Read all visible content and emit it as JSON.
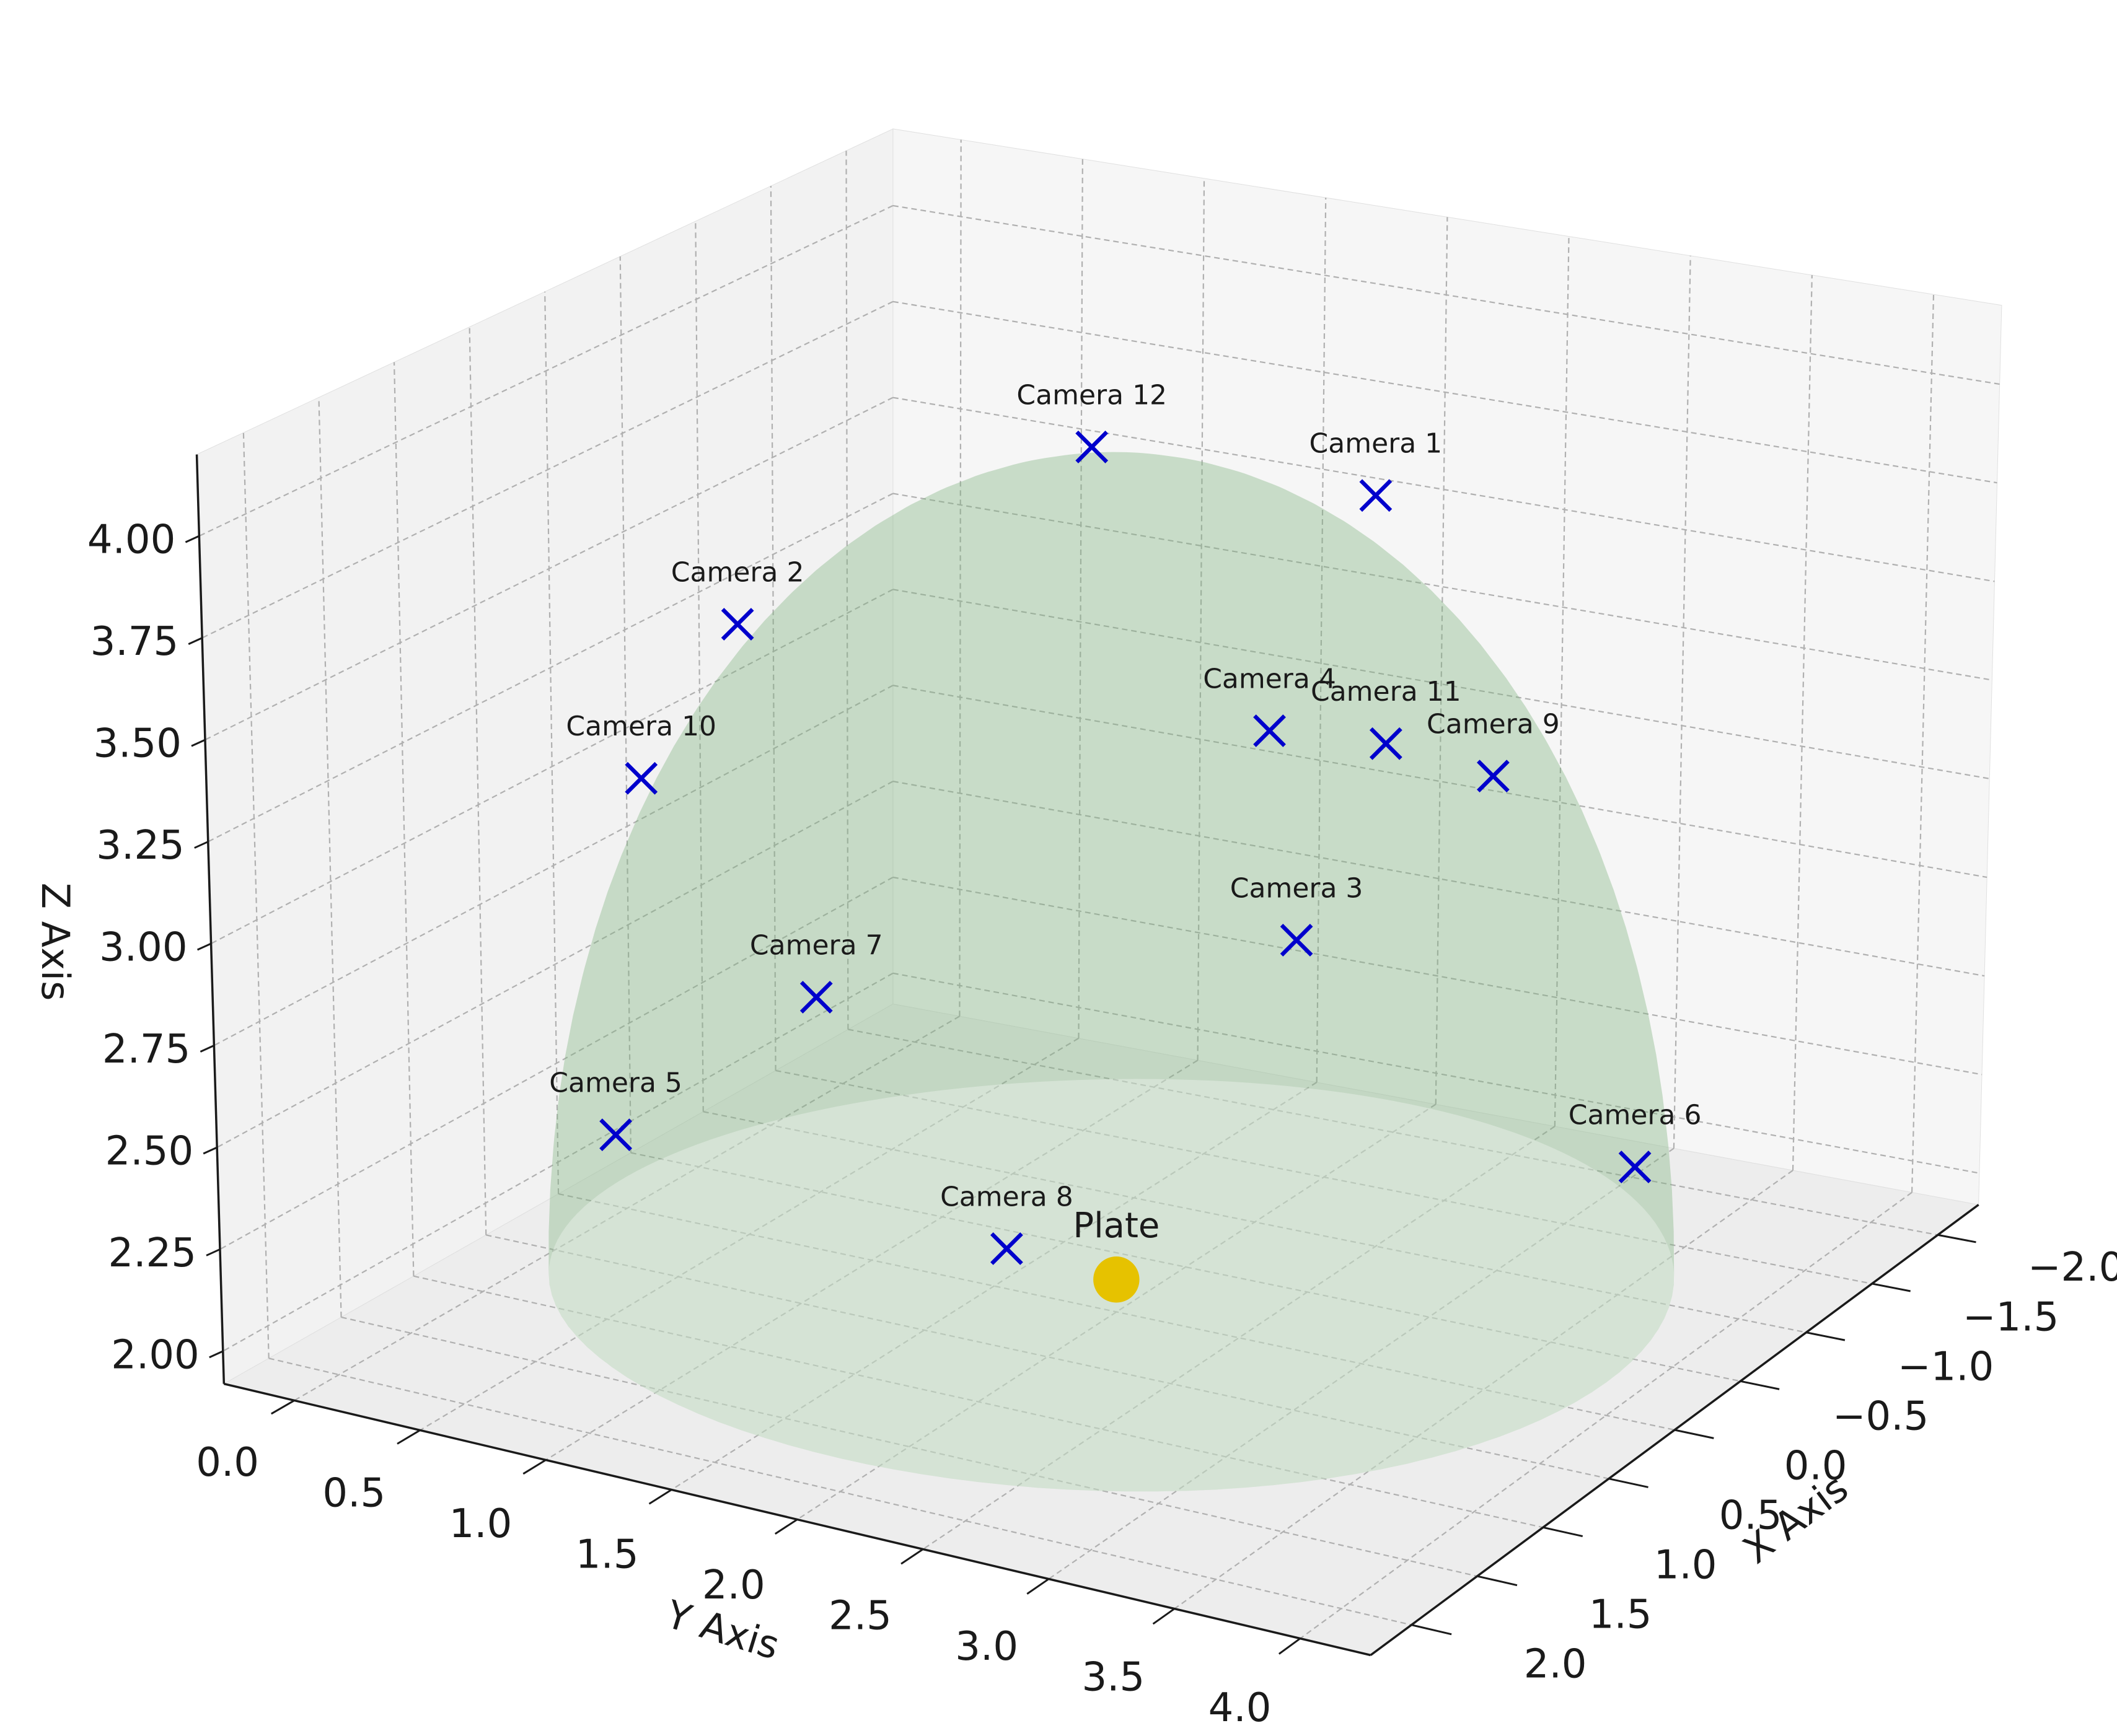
{
  "chart_data": {
    "type": "scatter3d",
    "xlabel": "X Axis",
    "ylabel": "Y Axis",
    "zlabel": "Z Axis",
    "xlim": [
      -2.31,
      2.31
    ],
    "ylim": [
      -0.28,
      4.28
    ],
    "zlim": [
      1.92,
      4.2
    ],
    "xticks": [
      {
        "value": -2,
        "label": "−2.0"
      },
      {
        "value": -1.5,
        "label": "−1.5"
      },
      {
        "value": -1,
        "label": "−1.0"
      },
      {
        "value": -0.5,
        "label": "−0.5"
      },
      {
        "value": 0,
        "label": "0.0"
      },
      {
        "value": 0.5,
        "label": "0.5"
      },
      {
        "value": 1,
        "label": "1.0"
      },
      {
        "value": 1.5,
        "label": "1.5"
      },
      {
        "value": 2,
        "label": "2.0"
      }
    ],
    "yticks": [
      {
        "value": 0,
        "label": "0.0"
      },
      {
        "value": 0.5,
        "label": "0.5"
      },
      {
        "value": 1,
        "label": "1.0"
      },
      {
        "value": 1.5,
        "label": "1.5"
      },
      {
        "value": 2,
        "label": "2.0"
      },
      {
        "value": 2.5,
        "label": "2.5"
      },
      {
        "value": 3,
        "label": "3.0"
      },
      {
        "value": 3.5,
        "label": "3.5"
      },
      {
        "value": 4,
        "label": "4.0"
      }
    ],
    "zticks": [
      {
        "value": 2,
        "label": "2.00"
      },
      {
        "value": 2.25,
        "label": "2.25"
      },
      {
        "value": 2.5,
        "label": "2.50"
      },
      {
        "value": 2.75,
        "label": "2.75"
      },
      {
        "value": 3,
        "label": "3.00"
      },
      {
        "value": 3.25,
        "label": "3.25"
      },
      {
        "value": 3.5,
        "label": "3.50"
      },
      {
        "value": 3.75,
        "label": "3.75"
      },
      {
        "value": 4,
        "label": "4.00"
      }
    ],
    "grid": true,
    "sphere": {
      "center": [
        0,
        2,
        2
      ],
      "radius": 2,
      "color": "#7fb47f"
    },
    "cameras": {
      "color": "#0000cc",
      "marker": "x",
      "labels": [
        "Camera 1",
        "Camera 2",
        "Camera 3",
        "Camera 4",
        "Camera 5",
        "Camera 6",
        "Camera 7",
        "Camera 8",
        "Camera 9",
        "Camera 10",
        "Camera 11",
        "Camera 12"
      ],
      "x": [
        -0.8,
        0.2,
        1.0,
        0.65,
        1.6,
        -0.3,
        1.75,
        1.85,
        -0.15,
        0.7,
        0.3,
        -0.2
      ],
      "y": [
        2.6,
        0.6,
        3.3,
        3.0,
        0.9,
        3.95,
        1.8,
        2.6,
        3.45,
        0.5,
        3.27,
        1.8
      ],
      "z": [
        3.85,
        3.5,
        3.2,
        3.6,
        2.55,
        2.45,
        3.03,
        2.55,
        3.38,
        3.2,
        3.53,
        4.0
      ]
    },
    "plate": {
      "color": "#e6c200",
      "marker": "o",
      "labels": [
        "Plate"
      ],
      "x": [
        0
      ],
      "y": [
        2
      ],
      "z": [
        2
      ]
    }
  }
}
